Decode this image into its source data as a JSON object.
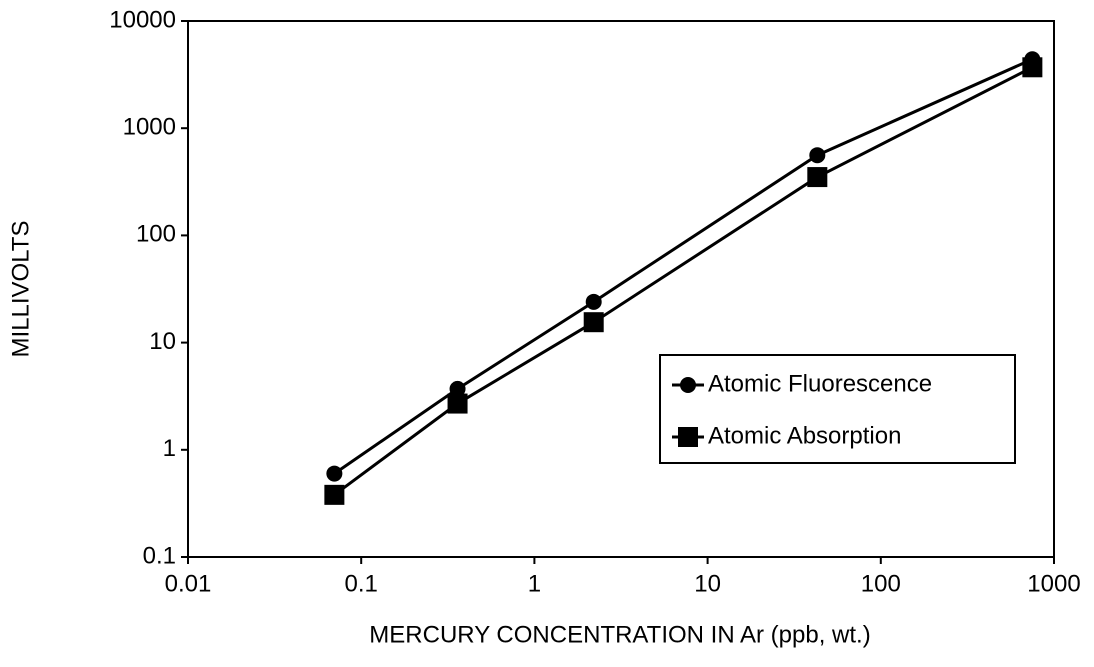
{
  "chart_data": {
    "type": "line",
    "x_label": "MERCURY CONCENTRATION IN Ar (ppb, wt.)",
    "y_label": "MILLIVOLTS",
    "x": [
      0.07,
      0.36,
      2.2,
      43,
      750
    ],
    "series": [
      {
        "name": "Atomic Fluorescence",
        "color": "#000000",
        "marker": "circle",
        "values": [
          0.6,
          3.7,
          24,
          560,
          4400
        ]
      },
      {
        "name": "Atomic Absorption",
        "color": "#000000",
        "marker": "square",
        "values": [
          0.38,
          2.7,
          15.5,
          350,
          3700
        ]
      }
    ],
    "xlim": [
      0.01,
      1000
    ],
    "ylim": [
      0.1,
      10000
    ],
    "xticks": [
      0.01,
      0.1,
      1,
      10,
      100,
      1000
    ],
    "yticks": [
      0.1,
      1,
      10,
      100,
      1000,
      10000
    ],
    "x_scale": "log",
    "y_scale": "log",
    "grid": false,
    "legend_position": "right"
  }
}
